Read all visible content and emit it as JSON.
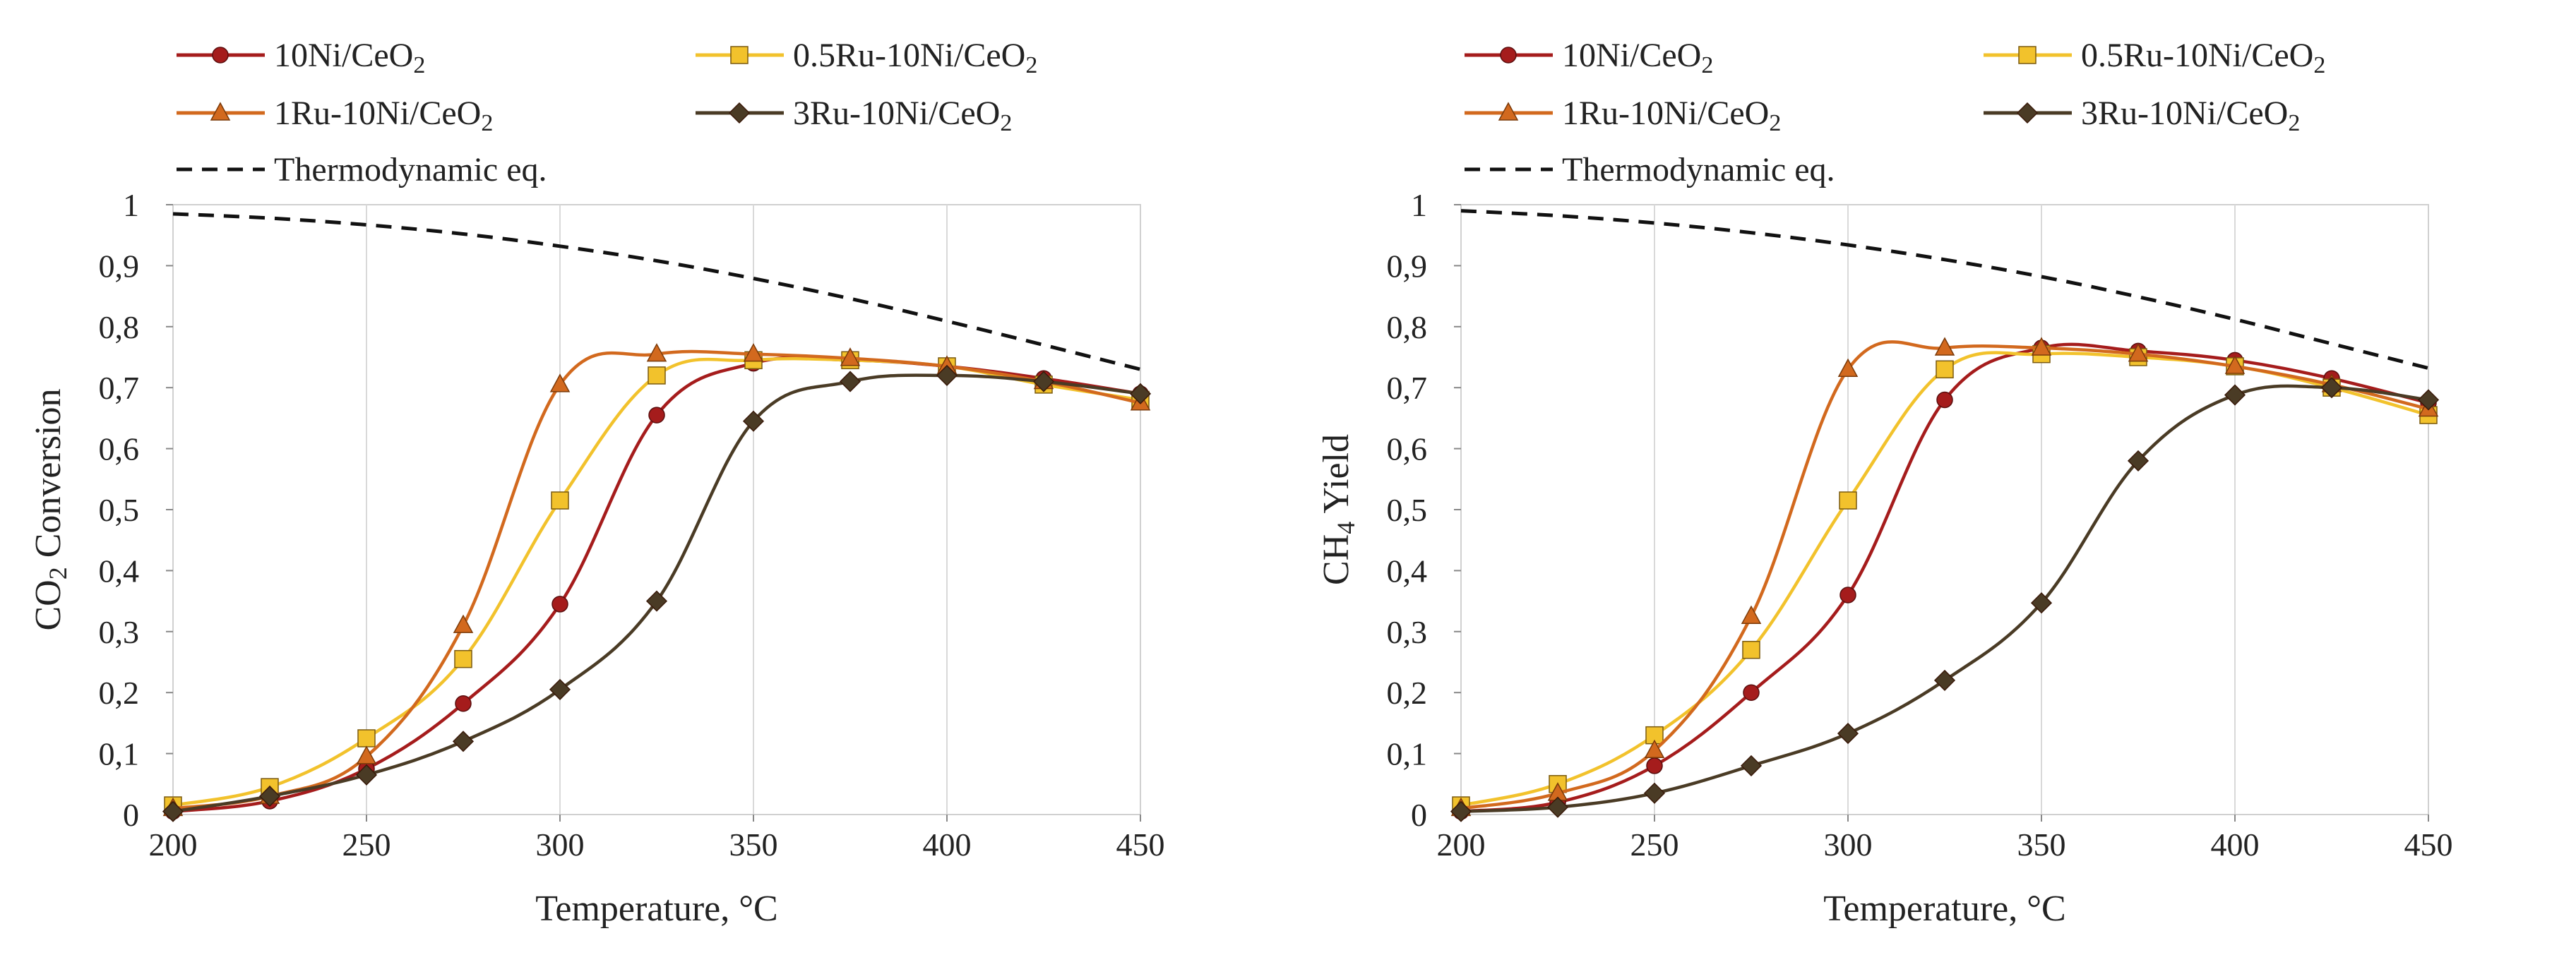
{
  "chart_data": [
    {
      "type": "line",
      "title": "",
      "xlabel": "Temperature, °C",
      "ylabel": {
        "base": "CO",
        "sub": "2",
        "rest": " Conversion"
      },
      "xlim": [
        200,
        450
      ],
      "ylim": [
        0,
        1
      ],
      "x_ticks": [
        "200",
        "250",
        "300",
        "350",
        "400",
        "450"
      ],
      "y_ticks": [
        "0",
        "0,1",
        "0,2",
        "0,3",
        "0,4",
        "0,5",
        "0,6",
        "0,7",
        "0,8",
        "0,9",
        "1"
      ],
      "grid": "vertical",
      "legend_position": "top",
      "series": [
        {
          "name": "10Ni/CeO2",
          "label": {
            "base": " 10Ni/CeO",
            "sub": "2"
          },
          "marker": "circle",
          "color": "#a51c1c",
          "x": [
            200,
            225,
            250,
            275,
            300,
            325,
            350,
            375,
            400,
            425,
            450
          ],
          "values": [
            0.005,
            0.022,
            0.075,
            0.182,
            0.345,
            0.655,
            0.74,
            0.745,
            0.735,
            0.715,
            0.69
          ]
        },
        {
          "name": "0.5Ru-10Ni/CeO2",
          "label": {
            "base": "0.5Ru-10Ni/CeO",
            "sub": "2"
          },
          "marker": "square",
          "color": "#f2c22c",
          "x": [
            200,
            225,
            250,
            275,
            300,
            325,
            350,
            375,
            400,
            425,
            450
          ],
          "values": [
            0.015,
            0.045,
            0.125,
            0.255,
            0.515,
            0.72,
            0.745,
            0.745,
            0.735,
            0.705,
            0.68
          ]
        },
        {
          "name": "1Ru-10Ni/CeO2",
          "label": {
            "base": "1Ru-10Ni/CeO",
            "sub": "2"
          },
          "marker": "triangle",
          "color": "#d2691e",
          "x": [
            200,
            225,
            250,
            275,
            300,
            325,
            350,
            375,
            400,
            425,
            450
          ],
          "values": [
            0.01,
            0.03,
            0.095,
            0.31,
            0.705,
            0.755,
            0.755,
            0.748,
            0.735,
            0.71,
            0.675
          ]
        },
        {
          "name": "3Ru-10Ni/CeO2",
          "label": {
            "base": "3Ru-10Ni/CeO",
            "sub": "2"
          },
          "marker": "diamond",
          "color": "#4a3b25",
          "x": [
            200,
            225,
            250,
            275,
            300,
            325,
            350,
            375,
            400,
            425,
            450
          ],
          "values": [
            0.005,
            0.03,
            0.065,
            0.12,
            0.205,
            0.35,
            0.645,
            0.71,
            0.72,
            0.71,
            0.69
          ]
        },
        {
          "name": "Thermodynamic eq.",
          "label": {
            "base": "Thermodynamic eq.",
            "sub": ""
          },
          "marker": "none",
          "dashed": true,
          "color": "#111111",
          "x": [
            200,
            225,
            250,
            275,
            300,
            325,
            350,
            375,
            400,
            425,
            450
          ],
          "values": [
            0.985,
            0.978,
            0.967,
            0.952,
            0.932,
            0.908,
            0.879,
            0.846,
            0.809,
            0.77,
            0.73
          ]
        }
      ]
    },
    {
      "type": "line",
      "title": "",
      "xlabel": "Temperature, °C",
      "ylabel": {
        "base": "CH",
        "sub": "4",
        "rest": " Yield"
      },
      "xlim": [
        200,
        450
      ],
      "ylim": [
        0,
        1
      ],
      "x_ticks": [
        "200",
        "250",
        "300",
        "350",
        "400",
        "450"
      ],
      "y_ticks": [
        "0",
        "0,1",
        "0,2",
        "0,3",
        "0,4",
        "0,5",
        "0,6",
        "0,7",
        "0,8",
        "0,9",
        "1"
      ],
      "grid": "vertical",
      "legend_position": "top",
      "series": [
        {
          "name": "10Ni/CeO2",
          "label": {
            "base": " 10Ni/CeO",
            "sub": "2"
          },
          "marker": "circle",
          "color": "#a51c1c",
          "x": [
            200,
            225,
            250,
            275,
            300,
            325,
            350,
            375,
            400,
            425,
            450
          ],
          "values": [
            0.005,
            0.02,
            0.08,
            0.2,
            0.36,
            0.68,
            0.765,
            0.76,
            0.745,
            0.715,
            0.675
          ]
        },
        {
          "name": "0.5Ru-10Ni/CeO2",
          "label": {
            "base": "0.5Ru-10Ni/CeO",
            "sub": "2"
          },
          "marker": "square",
          "color": "#f2c22c",
          "x": [
            200,
            225,
            250,
            275,
            300,
            325,
            350,
            375,
            400,
            425,
            450
          ],
          "values": [
            0.015,
            0.05,
            0.13,
            0.27,
            0.515,
            0.73,
            0.755,
            0.75,
            0.735,
            0.7,
            0.655
          ]
        },
        {
          "name": "1Ru-10Ni/CeO2",
          "label": {
            "base": "1Ru-10Ni/CeO",
            "sub": "2"
          },
          "marker": "triangle",
          "color": "#d2691e",
          "x": [
            200,
            225,
            250,
            275,
            300,
            325,
            350,
            375,
            400,
            425,
            450
          ],
          "values": [
            0.01,
            0.035,
            0.105,
            0.325,
            0.73,
            0.765,
            0.765,
            0.755,
            0.735,
            0.705,
            0.665
          ]
        },
        {
          "name": "3Ru-10Ni/CeO2",
          "label": {
            "base": "3Ru-10Ni/CeO",
            "sub": "2"
          },
          "marker": "diamond",
          "color": "#4a3b25",
          "x": [
            200,
            225,
            250,
            275,
            300,
            325,
            350,
            375,
            400,
            425,
            450
          ],
          "values": [
            0.005,
            0.012,
            0.035,
            0.08,
            0.133,
            0.22,
            0.347,
            0.58,
            0.688,
            0.7,
            0.68
          ]
        },
        {
          "name": "Thermodynamic eq.",
          "label": {
            "base": "Thermodynamic eq.",
            "sub": ""
          },
          "marker": "none",
          "dashed": true,
          "color": "#111111",
          "x": [
            200,
            225,
            250,
            275,
            300,
            325,
            350,
            375,
            400,
            425,
            450
          ],
          "values": [
            0.99,
            0.982,
            0.97,
            0.954,
            0.934,
            0.91,
            0.882,
            0.849,
            0.812,
            0.772,
            0.732
          ]
        }
      ]
    }
  ]
}
